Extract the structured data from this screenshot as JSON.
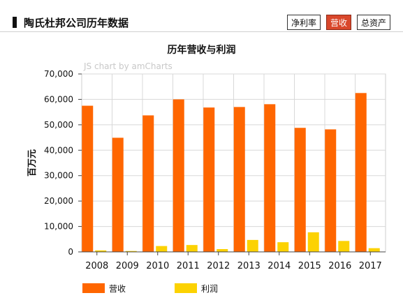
{
  "header": {
    "title": "陶氏杜邦公司历年数据",
    "tabs": [
      {
        "label": "净利率",
        "active": false
      },
      {
        "label": "营收",
        "active": true
      },
      {
        "label": "总资产",
        "active": false
      }
    ]
  },
  "watermark": "JS chart by amCharts",
  "colors": {
    "revenue": "#ff6600",
    "profit": "#fcd202",
    "active_tab": "#d9472b",
    "grid": "#d8d8d8"
  },
  "chart_data": {
    "type": "bar",
    "title": "历年营收与利润",
    "xlabel": "",
    "ylabel": "百万元",
    "ylim": [
      0,
      70000
    ],
    "yticks": [
      "0",
      "10,000",
      "20,000",
      "30,000",
      "40,000",
      "50,000",
      "60,000",
      "70,000"
    ],
    "categories": [
      "2008",
      "2009",
      "2010",
      "2011",
      "2012",
      "2013",
      "2014",
      "2015",
      "2016",
      "2017"
    ],
    "series": [
      {
        "name": "营收",
        "values": [
          57500,
          44900,
          53700,
          60000,
          56800,
          57000,
          58100,
          48800,
          48200,
          62500
        ]
      },
      {
        "name": "利润",
        "values": [
          580,
          350,
          2300,
          2700,
          1100,
          4700,
          3800,
          7700,
          4300,
          1460
        ]
      }
    ],
    "grid": true,
    "legend": "bottom-left"
  }
}
